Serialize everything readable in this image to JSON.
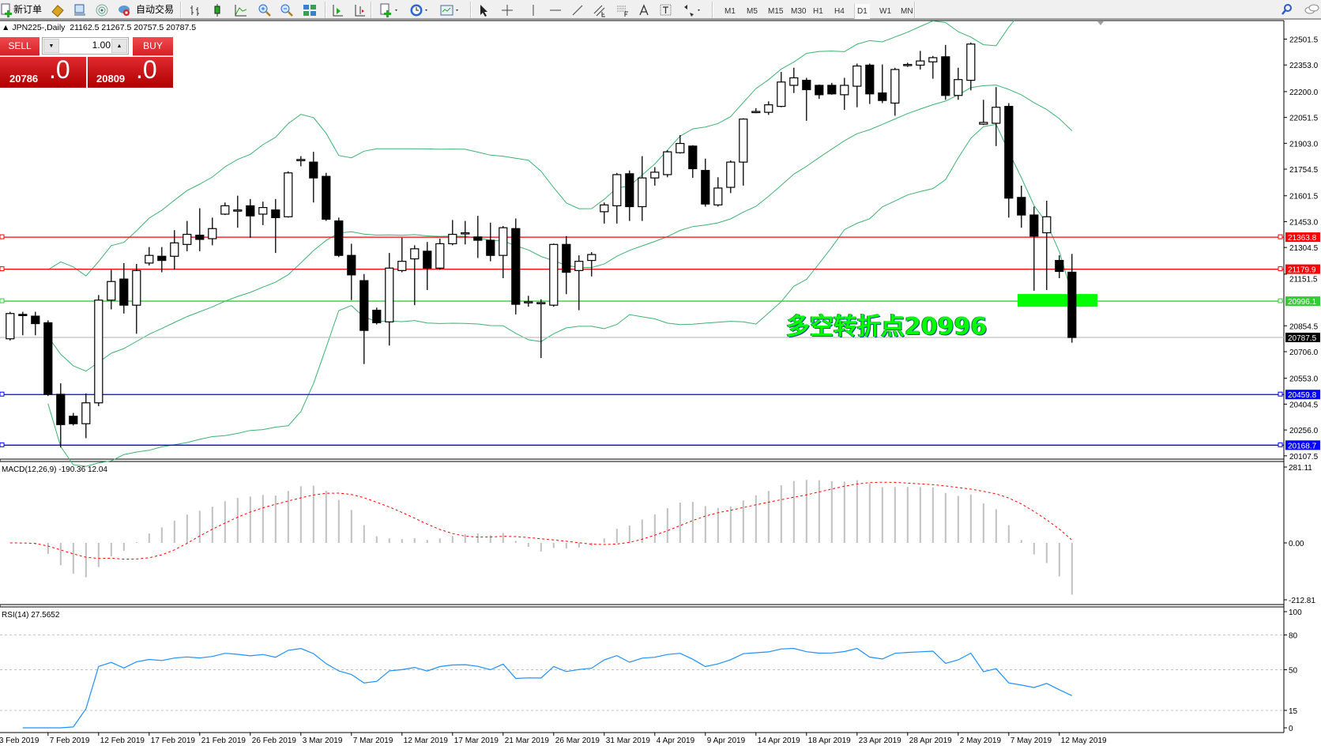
{
  "toolbar": {
    "new_order_label": "新订单",
    "auto_trading_label": "自动交易",
    "icons": [
      "new-order-icon",
      "market-watch-icon",
      "data-window-icon",
      "signals-icon",
      "auto-trading-icon",
      "bar-chart-icon",
      "candlestick-icon",
      "line-chart-icon",
      "zoom-in-icon",
      "zoom-out-icon",
      "tile-windows-icon",
      "auto-scroll-icon",
      "chart-shift-icon",
      "new-chart-icon",
      "periods-icon",
      "templates-icon",
      "cursor-icon",
      "crosshair-icon",
      "vertical-line-icon",
      "horizontal-line-icon",
      "trendline-icon",
      "equidistant-channel-icon",
      "fibonacci-icon",
      "text-icon",
      "text-label-icon",
      "arrows-icon",
      "search-icon",
      "chat-icon"
    ],
    "timeframes": [
      "M1",
      "M5",
      "M15",
      "M30",
      "H1",
      "H4",
      "D1",
      "W1",
      "MN"
    ],
    "active_timeframe": "D1"
  },
  "chart_header": {
    "symbol": "JPN225-,Daily",
    "ohlc": "21162.5 21267.5 20757.5 20787.5"
  },
  "trade_panel": {
    "sell_label": "SELL",
    "buy_label": "BUY",
    "lot": "1.00",
    "sell_price_main": "20786",
    "sell_price_frac": ".0",
    "buy_price_main": "20809",
    "buy_price_frac": ".0"
  },
  "annotation": {
    "text": "多空转折点20996",
    "color": "#00ff00"
  },
  "price_axis_ticks": [
    "22501.5",
    "22353.0",
    "22200.0",
    "22051.5",
    "21903.0",
    "21754.5",
    "21601.5",
    "21453.0",
    "21304.5",
    "21151.5",
    "20854.5",
    "20706.0",
    "20553.0",
    "20404.5",
    "20256.0",
    "20107.5"
  ],
  "horizontal_lines": [
    {
      "price": "21363.8",
      "color": "#ff0000"
    },
    {
      "price": "21179.9",
      "color": "#ff0000"
    },
    {
      "price": "20996.1",
      "color": "#32cd32"
    },
    {
      "price": "20787.5",
      "color": "#000000",
      "line_color": "#c0c0c0"
    },
    {
      "price": "20459.8",
      "color": "#0000ff"
    },
    {
      "price": "20168.7",
      "color": "#0000ff"
    }
  ],
  "macd": {
    "label": "MACD(12,26,9) -190.36 12.04",
    "axis": [
      "281.11",
      "0.00",
      "-212.81"
    ],
    "range": [
      -212.81,
      281.11
    ]
  },
  "rsi": {
    "label": "RSI(14) 27.5652",
    "axis": [
      "100",
      "80",
      "50",
      "15",
      "0"
    ],
    "levels": [
      80,
      50,
      15
    ]
  },
  "date_axis": [
    "3 Feb 2019",
    "7 Feb 2019",
    "12 Feb 2019",
    "17 Feb 2019",
    "21 Feb 2019",
    "26 Feb 2019",
    "3 Mar 2019",
    "7 Mar 2019",
    "12 Mar 2019",
    "17 Mar 2019",
    "21 Mar 2019",
    "26 Mar 2019",
    "31 Mar 2019",
    "4 Apr 2019",
    "9 Apr 2019",
    "14 Apr 2019",
    "18 Apr 2019",
    "23 Apr 2019",
    "28 Apr 2019",
    "2 May 2019",
    "7 May 2019",
    "12 May 2019"
  ],
  "chart_data": {
    "type": "candlestick",
    "symbol": "JPN225-",
    "timeframe": "Daily",
    "ylim": [
      20107.5,
      22501.5
    ],
    "indicators": [
      "Bollinger Bands(20,2)",
      "MACD(12,26,9)",
      "RSI(14)"
    ],
    "colors": {
      "bull_body": "#ffffff",
      "bear_body": "#000000",
      "bands": "#3cb371",
      "rsi": "#1e90ff",
      "macd_hist": "#c0c0c0",
      "macd_signal": "#ff0000"
    },
    "ohlc": [
      [
        20780,
        20935,
        20770,
        20925
      ],
      [
        20920,
        20935,
        20800,
        20915
      ],
      [
        20910,
        20935,
        20800,
        20867
      ],
      [
        20872,
        20886,
        20451,
        20461
      ],
      [
        20461,
        20524,
        20156,
        20287
      ],
      [
        20335,
        20354,
        20282,
        20292
      ],
      [
        20292,
        20466,
        20209,
        20412
      ],
      [
        20412,
        21031,
        20393,
        21002
      ],
      [
        21002,
        21176,
        20949,
        21109
      ],
      [
        21123,
        21215,
        20925,
        20973
      ],
      [
        20973,
        21210,
        20809,
        21172
      ],
      [
        21215,
        21307,
        21201,
        21259
      ],
      [
        21254,
        21307,
        21162,
        21230
      ],
      [
        21254,
        21404,
        21176,
        21331
      ],
      [
        21322,
        21457,
        21283,
        21380
      ],
      [
        21375,
        21530,
        21283,
        21351
      ],
      [
        21355,
        21476,
        21317,
        21413
      ],
      [
        21496,
        21563,
        21491,
        21544
      ],
      [
        21515,
        21602,
        21418,
        21520
      ],
      [
        21544,
        21583,
        21360,
        21486
      ],
      [
        21496,
        21568,
        21433,
        21534
      ],
      [
        21520,
        21583,
        21273,
        21476
      ],
      [
        21481,
        21742,
        21476,
        21733
      ],
      [
        21805,
        21829,
        21771,
        21810
      ],
      [
        21795,
        21854,
        21563,
        21704
      ],
      [
        21713,
        21733,
        21457,
        21467
      ],
      [
        21457,
        21476,
        21249,
        21259
      ],
      [
        21259,
        21326,
        21002,
        21147
      ],
      [
        21114,
        21152,
        20635,
        20828
      ],
      [
        20944,
        20959,
        20862,
        20872
      ],
      [
        20877,
        21273,
        20741,
        21186
      ],
      [
        21172,
        21360,
        21162,
        21225
      ],
      [
        21239,
        21317,
        20973,
        21297
      ],
      [
        21283,
        21336,
        21060,
        21186
      ],
      [
        21186,
        21355,
        21176,
        21326
      ],
      [
        21326,
        21462,
        21317,
        21380
      ],
      [
        21384,
        21457,
        21322,
        21389
      ],
      [
        21365,
        21486,
        21244,
        21346
      ],
      [
        21346,
        21447,
        21225,
        21259
      ],
      [
        21259,
        21428,
        21128,
        21418
      ],
      [
        21413,
        21471,
        20920,
        20978
      ],
      [
        20988,
        21027,
        20964,
        20993
      ],
      [
        20983,
        21007,
        20669,
        20988
      ],
      [
        20973,
        21327,
        20964,
        21322
      ],
      [
        21322,
        21370,
        21036,
        21162
      ],
      [
        21172,
        21259,
        20944,
        21225
      ],
      [
        21230,
        21278,
        21138,
        21264
      ],
      [
        21510,
        21563,
        21442,
        21549
      ],
      [
        21544,
        21733,
        21442,
        21723
      ],
      [
        21728,
        21747,
        21457,
        21539
      ],
      [
        21539,
        21829,
        21457,
        21704
      ],
      [
        21704,
        21766,
        21660,
        21737
      ],
      [
        21723,
        21863,
        21708,
        21854
      ],
      [
        21849,
        21950,
        21844,
        21902
      ],
      [
        21887,
        21892,
        21704,
        21757
      ],
      [
        21747,
        21815,
        21539,
        21554
      ],
      [
        21549,
        21708,
        21539,
        21646
      ],
      [
        21650,
        21805,
        21617,
        21795
      ],
      [
        21795,
        22047,
        21660,
        22042
      ],
      [
        22081,
        22105,
        22076,
        22086
      ],
      [
        22081,
        22144,
        22066,
        22124
      ],
      [
        22115,
        22313,
        22110,
        22255
      ],
      [
        22236,
        22337,
        22192,
        22279
      ],
      [
        22265,
        22279,
        22032,
        22211
      ],
      [
        22236,
        22240,
        22158,
        22182
      ],
      [
        22236,
        22250,
        22182,
        22187
      ],
      [
        22182,
        22279,
        22095,
        22236
      ],
      [
        22231,
        22361,
        22110,
        22347
      ],
      [
        22352,
        22361,
        22129,
        22187
      ],
      [
        22192,
        22356,
        22134,
        22149
      ],
      [
        22134,
        22337,
        22061,
        22327
      ],
      [
        22352,
        22366,
        22342,
        22356
      ],
      [
        22352,
        22434,
        22327,
        22376
      ],
      [
        22371,
        22405,
        22274,
        22395
      ],
      [
        22400,
        22468,
        22153,
        22178
      ],
      [
        22178,
        22337,
        22153,
        22269
      ],
      [
        22265,
        22482,
        22207,
        22473
      ],
      [
        22013,
        22153,
        22008,
        22023
      ],
      [
        22018,
        22226,
        21887,
        22110
      ],
      [
        22115,
        22134,
        21476,
        21588
      ],
      [
        21592,
        21660,
        21418,
        21491
      ],
      [
        21491,
        21539,
        21056,
        21370
      ],
      [
        21389,
        21573,
        21060,
        21481
      ],
      [
        21230,
        21259,
        21128,
        21167
      ],
      [
        21162.5,
        21267.5,
        20757.5,
        20787.5
      ]
    ]
  }
}
